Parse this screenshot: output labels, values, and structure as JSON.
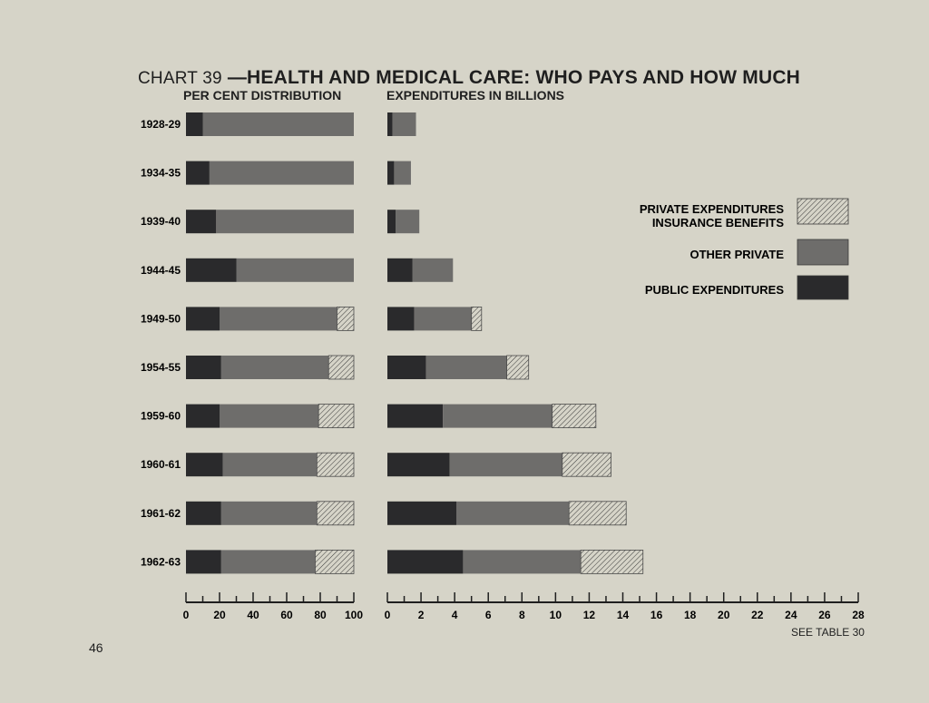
{
  "title_prefix": "CHART 39",
  "title_main": "—HEALTH AND MEDICAL CARE: WHO PAYS AND HOW MUCH",
  "left_panel_title": "PER CENT DISTRIBUTION",
  "right_panel_title": "EXPENDITURES IN BILLIONS",
  "footer_note": "SEE TABLE 30",
  "page_number": "46",
  "colors": {
    "public": "#2a2a2c",
    "other_private": "#6e6d6b",
    "insurance": "#d6d4c8",
    "hatch": "#3a3a3a"
  },
  "chart_data": [
    {
      "type": "bar",
      "orientation": "horizontal",
      "stacked": true,
      "title": "PER CENT DISTRIBUTION",
      "categories": [
        "1928-29",
        "1934-35",
        "1939-40",
        "1944-45",
        "1949-50",
        "1954-55",
        "1959-60",
        "1960-61",
        "1961-62",
        "1962-63"
      ],
      "series": [
        {
          "name": "PUBLIC EXPENDITURES",
          "values": [
            10,
            14,
            18,
            30,
            20,
            21,
            20,
            22,
            21,
            21
          ]
        },
        {
          "name": "OTHER PRIVATE",
          "values": [
            90,
            86,
            82,
            70,
            70,
            64,
            59,
            56,
            57,
            56
          ]
        },
        {
          "name": "PRIVATE EXPENDITURES INSURANCE BENEFITS",
          "values": [
            0,
            0,
            0,
            0,
            10,
            15,
            21,
            22,
            22,
            23
          ]
        }
      ],
      "xlim": [
        0,
        100
      ],
      "xticks": [
        0,
        20,
        40,
        60,
        80,
        100
      ]
    },
    {
      "type": "bar",
      "orientation": "horizontal",
      "stacked": true,
      "title": "EXPENDITURES IN BILLIONS",
      "categories": [
        "1928-29",
        "1934-35",
        "1939-40",
        "1944-45",
        "1949-50",
        "1954-55",
        "1959-60",
        "1960-61",
        "1961-62",
        "1962-63"
      ],
      "series": [
        {
          "name": "PUBLIC EXPENDITURES",
          "values": [
            0.3,
            0.4,
            0.5,
            1.5,
            1.6,
            2.3,
            3.3,
            3.7,
            4.1,
            4.5
          ]
        },
        {
          "name": "OTHER PRIVATE",
          "values": [
            1.4,
            1.0,
            1.4,
            2.4,
            3.4,
            4.8,
            6.5,
            6.7,
            6.7,
            7.0
          ]
        },
        {
          "name": "PRIVATE EXPENDITURES INSURANCE BENEFITS",
          "values": [
            0,
            0,
            0,
            0,
            0.6,
            1.3,
            2.6,
            2.9,
            3.4,
            3.7
          ]
        }
      ],
      "xlim": [
        0,
        28
      ],
      "xticks": [
        0,
        2,
        4,
        6,
        8,
        10,
        12,
        14,
        16,
        18,
        20,
        22,
        24,
        26,
        28
      ],
      "legend": {
        "position": "right",
        "entries": [
          {
            "lines": [
              "PRIVATE EXPENDITURES",
              "INSURANCE BENEFITS"
            ],
            "series": 2
          },
          {
            "lines": [
              "OTHER PRIVATE"
            ],
            "series": 1
          },
          {
            "lines": [
              "PUBLIC EXPENDITURES"
            ],
            "series": 0
          }
        ]
      }
    }
  ]
}
